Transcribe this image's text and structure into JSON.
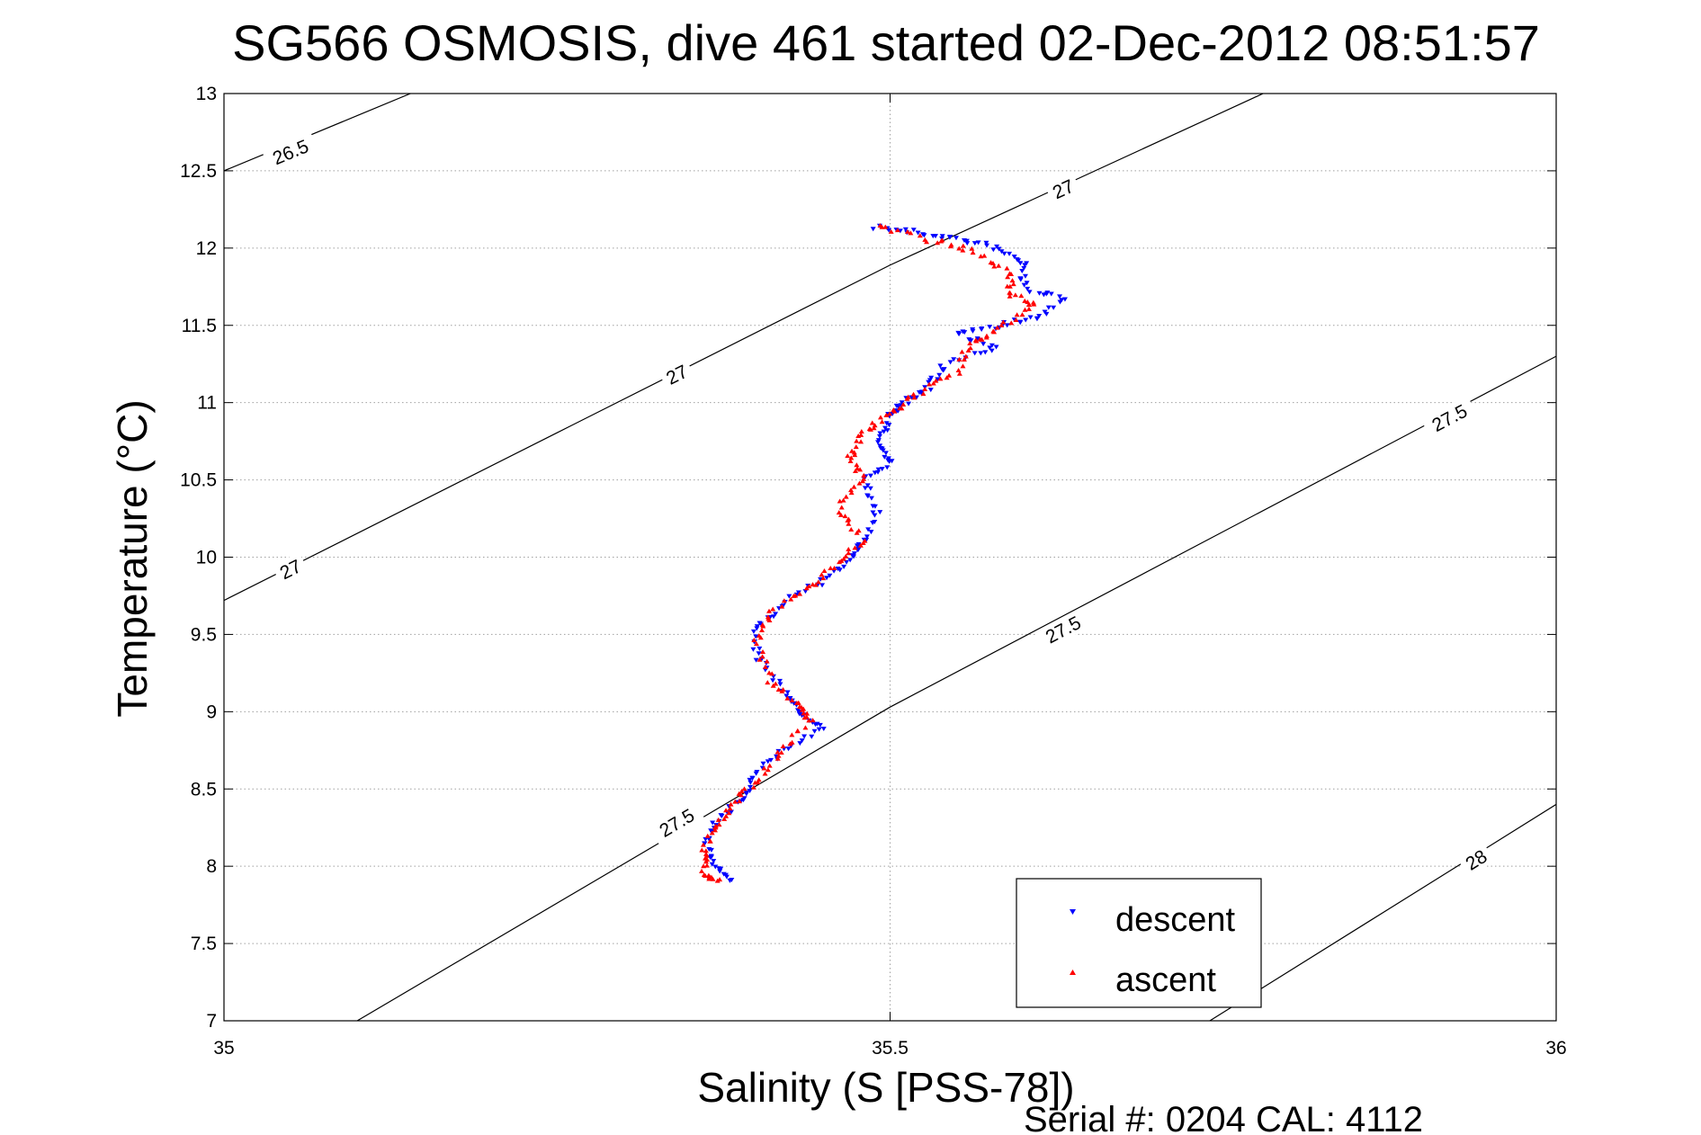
{
  "chart_data": {
    "type": "scatter",
    "title": "SG566 OSMOSIS, dive 461 started 02-Dec-2012 08:51:57",
    "xlabel": "Salinity (S [PSS-78])",
    "ylabel": "Temperature (°C)",
    "xlim": [
      35,
      36
    ],
    "ylim": [
      7,
      13
    ],
    "xticks": [
      35,
      35.5,
      36
    ],
    "xtick_labels": [
      "35",
      "35.5",
      "36"
    ],
    "yticks": [
      7,
      7.5,
      8,
      8.5,
      9,
      9.5,
      10,
      10.5,
      11,
      11.5,
      12,
      12.5,
      13
    ],
    "ytick_labels": [
      "7",
      "7.5",
      "8",
      "8.5",
      "9",
      "9.5",
      "10",
      "10.5",
      "11",
      "11.5",
      "12",
      "12.5",
      "13"
    ],
    "grid": true,
    "legend": {
      "placement": "bottom-right"
    },
    "density_contours": [
      {
        "label": "26.5",
        "points": [
          [
            35.0,
            12.5
          ],
          [
            35.14,
            13.0
          ]
        ],
        "labels_at": [
          [
            35.05,
            12.62
          ]
        ]
      },
      {
        "label": "27",
        "points": [
          [
            35.0,
            9.72
          ],
          [
            35.5,
            11.89
          ],
          [
            35.78,
            13.0
          ]
        ],
        "labels_at": [
          [
            35.05,
            9.92
          ],
          [
            35.34,
            11.18
          ],
          [
            35.63,
            12.38
          ]
        ]
      },
      {
        "label": "27.5",
        "points": [
          [
            35.1,
            7.0
          ],
          [
            35.5,
            9.03
          ],
          [
            36.0,
            11.3
          ]
        ],
        "labels_at": [
          [
            35.34,
            8.28
          ],
          [
            35.63,
            9.53
          ],
          [
            35.92,
            10.9
          ]
        ]
      },
      {
        "label": "28",
        "points": [
          [
            35.74,
            7.0
          ],
          [
            36.0,
            8.4
          ]
        ],
        "labels_at": [
          [
            35.94,
            8.04
          ]
        ]
      }
    ],
    "series": [
      {
        "name": "descent",
        "color": "#0000ff",
        "marker": "triangle-down",
        "points": [
          [
            35.49,
            12.14
          ],
          [
            35.52,
            12.1
          ],
          [
            35.55,
            12.06
          ],
          [
            35.58,
            12.0
          ],
          [
            35.6,
            11.9
          ],
          [
            35.6,
            11.75
          ],
          [
            35.63,
            11.67
          ],
          [
            35.61,
            11.55
          ],
          [
            35.58,
            11.5
          ],
          [
            35.55,
            11.45
          ],
          [
            35.58,
            11.35
          ],
          [
            35.54,
            11.25
          ],
          [
            35.53,
            11.1
          ],
          [
            35.51,
            11.0
          ],
          [
            35.5,
            10.9
          ],
          [
            35.49,
            10.75
          ],
          [
            35.5,
            10.62
          ],
          [
            35.48,
            10.5
          ],
          [
            35.49,
            10.3
          ],
          [
            35.48,
            10.1
          ],
          [
            35.47,
            10.0
          ],
          [
            35.45,
            9.85
          ],
          [
            35.42,
            9.7
          ],
          [
            35.4,
            9.55
          ],
          [
            35.4,
            9.35
          ],
          [
            35.42,
            9.15
          ],
          [
            35.43,
            9.0
          ],
          [
            35.45,
            8.9
          ],
          [
            35.42,
            8.75
          ],
          [
            35.4,
            8.6
          ],
          [
            35.39,
            8.45
          ],
          [
            35.37,
            8.3
          ],
          [
            35.36,
            8.15
          ],
          [
            35.37,
            8.0
          ],
          [
            35.38,
            7.92
          ]
        ]
      },
      {
        "name": "ascent",
        "color": "#ff0000",
        "marker": "triangle-up",
        "points": [
          [
            35.49,
            12.15
          ],
          [
            35.53,
            12.05
          ],
          [
            35.56,
            11.98
          ],
          [
            35.59,
            11.85
          ],
          [
            35.59,
            11.7
          ],
          [
            35.61,
            11.62
          ],
          [
            35.58,
            11.48
          ],
          [
            35.56,
            11.38
          ],
          [
            35.55,
            11.2
          ],
          [
            35.52,
            11.05
          ],
          [
            35.5,
            10.92
          ],
          [
            35.48,
            10.8
          ],
          [
            35.47,
            10.65
          ],
          [
            35.48,
            10.5
          ],
          [
            35.46,
            10.3
          ],
          [
            35.48,
            10.12
          ],
          [
            35.46,
            9.95
          ],
          [
            35.44,
            9.8
          ],
          [
            35.41,
            9.65
          ],
          [
            35.4,
            9.45
          ],
          [
            35.41,
            9.2
          ],
          [
            35.43,
            9.05
          ],
          [
            35.44,
            8.95
          ],
          [
            35.42,
            8.75
          ],
          [
            35.4,
            8.55
          ],
          [
            35.38,
            8.4
          ],
          [
            35.37,
            8.25
          ],
          [
            35.36,
            8.1
          ],
          [
            35.36,
            7.95
          ],
          [
            35.37,
            7.9
          ]
        ]
      }
    ]
  },
  "footer": {
    "serial_text": "Serial #: 0204  CAL: 4112"
  }
}
